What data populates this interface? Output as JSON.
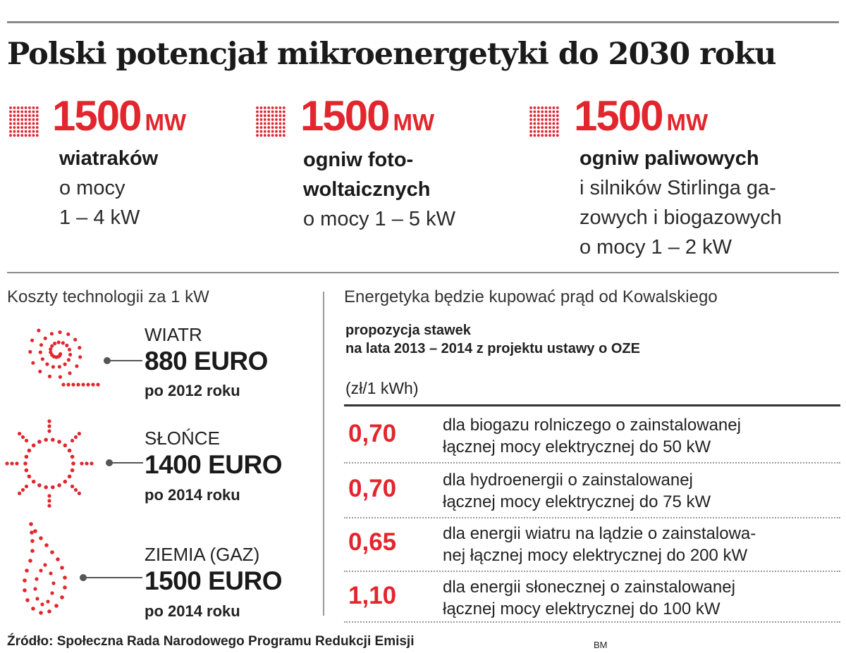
{
  "title": "Polski potencjał mikroenergetyki do 2030 roku",
  "potential": [
    {
      "value": "1500",
      "unit": "MW",
      "bold": "wiatraków",
      "lines": [
        "o mocy",
        "1 – 4 kW"
      ]
    },
    {
      "value": "1500",
      "unit": "MW",
      "bold": "ogniw foto-",
      "lines": [
        "woltaicznych",
        "o mocy 1  – 5 kW"
      ]
    },
    {
      "value": "1500",
      "unit": "MW",
      "bold": "ogniw paliwowych",
      "lines": [
        "i silników Stirlinga ga-",
        "zowych i biogazowych",
        "o mocy 1 – 2 kW"
      ]
    }
  ],
  "costs": {
    "heading": "Koszty technologii za 1 kW",
    "items": [
      {
        "icon": "spiral-icon",
        "label": "WIATR",
        "value": "880 EURO",
        "note": "po 2012 roku"
      },
      {
        "icon": "sun-icon",
        "label": "SŁOŃCE",
        "value": "1400 EURO",
        "note": "po 2014 roku"
      },
      {
        "icon": "flame-icon",
        "label": "ZIEMIA (GAZ)",
        "value": "1500 EURO",
        "note": "po 2014 roku"
      }
    ]
  },
  "rates": {
    "heading": "Energetyka będzie kupować prąd od Kowalskiego",
    "subheading_line1": "propozycja stawek",
    "subheading_line2": "na lata 2013 – 2014 z projektu ustawy o OZE",
    "unit": "(zł/1 kWh)",
    "rows": [
      {
        "value": "0,70",
        "line1": "dla biogazu rolniczego o zainstalowanej",
        "line2": "łącznej mocy elektrycznej do 50 kW"
      },
      {
        "value": "0,70",
        "line1": "dla hydroenergii o zainstalowanej",
        "line2": "łącznej mocy elektrycznej do 75 kW"
      },
      {
        "value": "0,65",
        "line1": "dla energii wiatru na lądzie o zainstalowa-",
        "line2": "nej łącznej mocy elektrycznej do 200 kW"
      },
      {
        "value": "1,10",
        "line1": "dla energii słonecznej o zainstalowanej",
        "line2": "łącznej mocy elektrycznej do 100 kW"
      }
    ]
  },
  "source": "Źródło: Społeczna Rada Narodowego Programu Redukcji Emisji",
  "author": "BM",
  "colors": {
    "accent": "#e2262d",
    "text": "#1a1a1a",
    "rule": "#8a8a8a"
  }
}
